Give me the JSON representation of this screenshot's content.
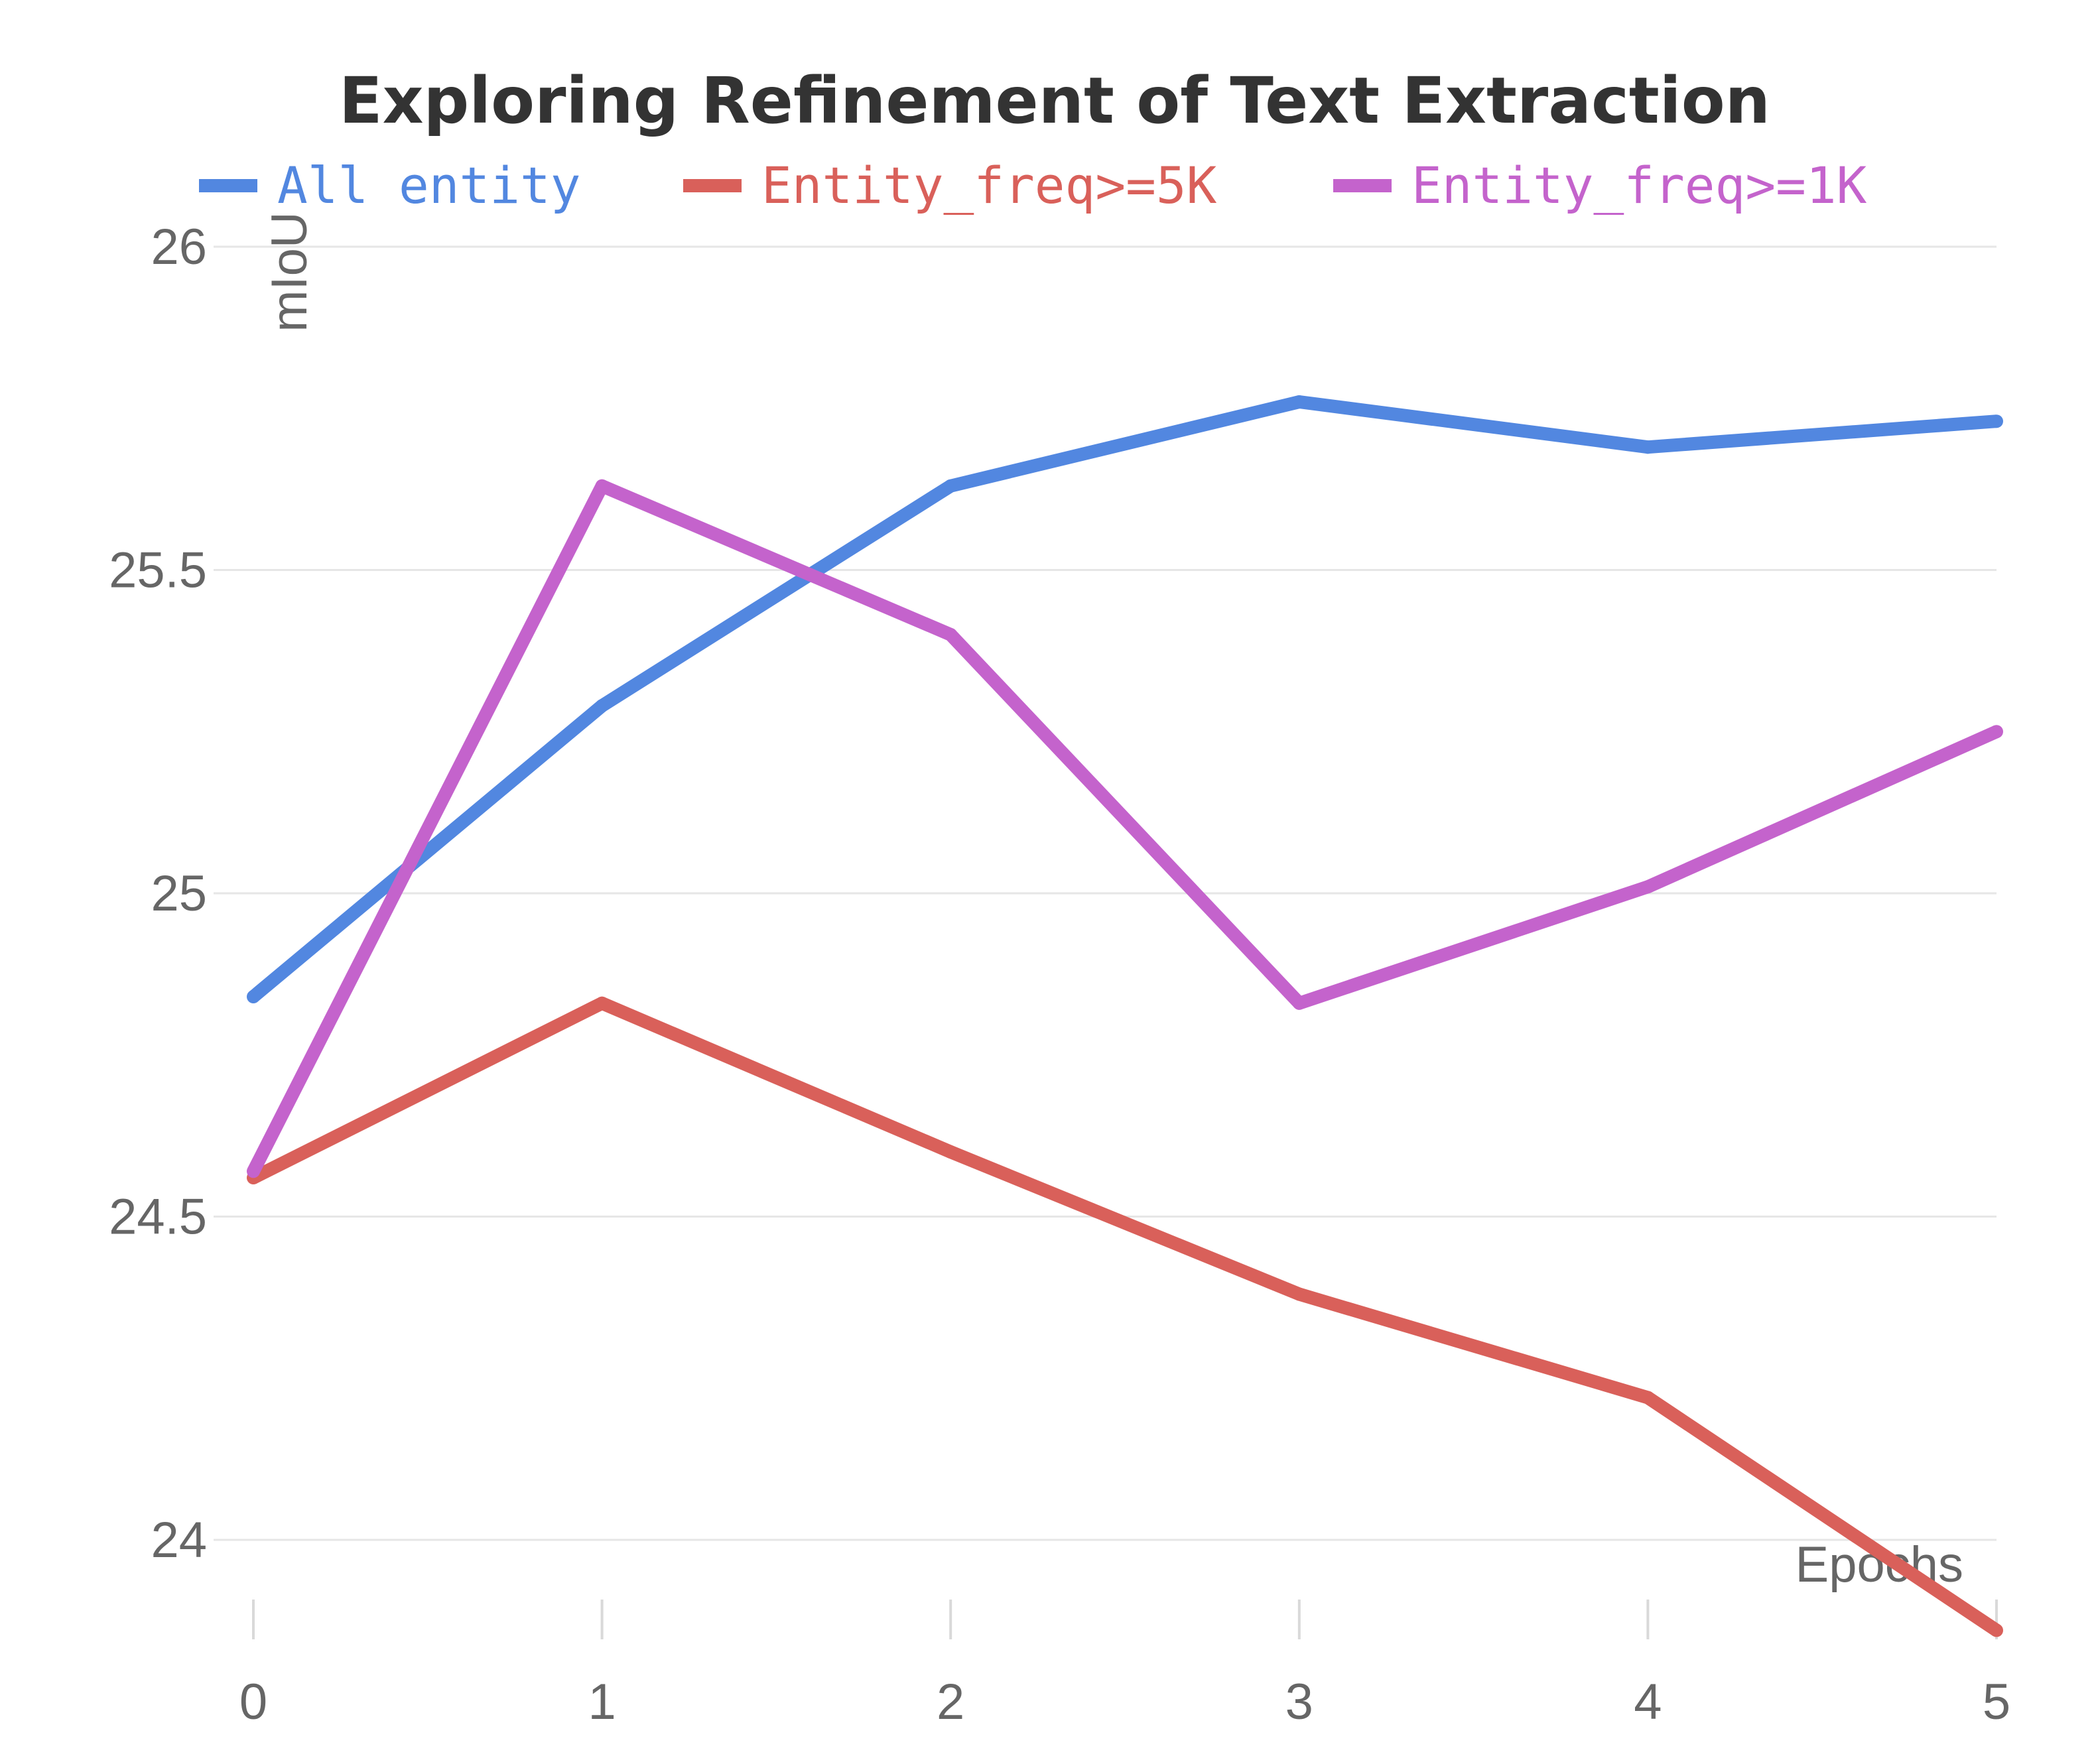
{
  "chart_data": {
    "type": "line",
    "title": "Exploring Refinement of Text Extraction",
    "xlabel": "Epochs",
    "ylabel": "mIoU",
    "x": [
      0,
      1,
      2,
      3,
      4,
      5
    ],
    "xlim": [
      0,
      5
    ],
    "ylim": [
      23.85,
      26
    ],
    "yticks": [
      24,
      24.5,
      25,
      25.5,
      26
    ],
    "yticklabels": [
      "24",
      "24.5",
      "25",
      "25.5",
      "26"
    ],
    "grid": true,
    "legend_position": "top",
    "series": [
      {
        "name": "All entity",
        "color": "#5287e0",
        "values": [
          24.84,
          25.29,
          25.63,
          25.76,
          25.69,
          25.73
        ]
      },
      {
        "name": "Entity_freq>=5K",
        "color": "#d9605a",
        "values": [
          24.56,
          24.83,
          24.6,
          24.38,
          24.22,
          23.86
        ]
      },
      {
        "name": "Entity_freq>=1K",
        "color": "#c463cc",
        "values": [
          24.57,
          25.63,
          25.4,
          24.83,
          25.01,
          25.25
        ]
      }
    ]
  }
}
